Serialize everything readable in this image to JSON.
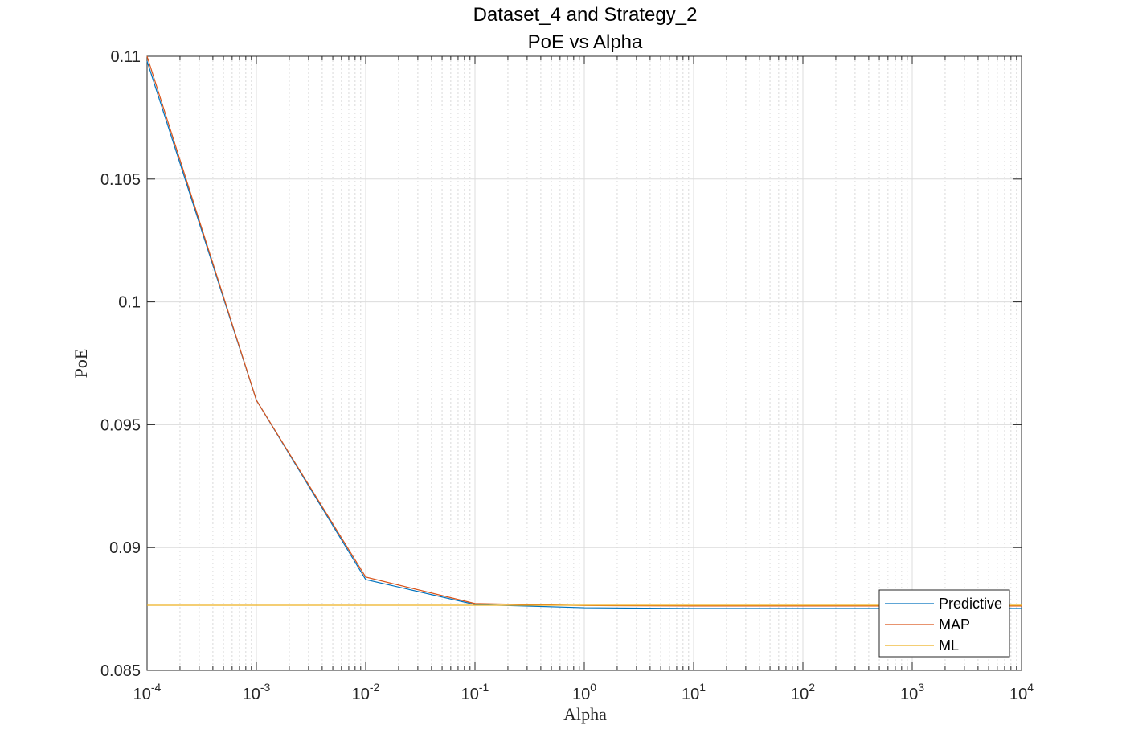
{
  "chart_data": {
    "type": "line",
    "title": "Dataset_4 and Strategy_2",
    "subtitle": "PoE vs Alpha",
    "xlabel": "Alpha",
    "ylabel": "PoE",
    "xscale": "log",
    "xlim": [
      0.0001,
      10000
    ],
    "ylim": [
      0.085,
      0.11
    ],
    "xticks": [
      {
        "exp": -4,
        "base": "10",
        "sup": "-4"
      },
      {
        "exp": -3,
        "base": "10",
        "sup": "-3"
      },
      {
        "exp": -2,
        "base": "10",
        "sup": "-2"
      },
      {
        "exp": -1,
        "base": "10",
        "sup": "-1"
      },
      {
        "exp": 0,
        "base": "10",
        "sup": "0"
      },
      {
        "exp": 1,
        "base": "10",
        "sup": "1"
      },
      {
        "exp": 2,
        "base": "10",
        "sup": "2"
      },
      {
        "exp": 3,
        "base": "10",
        "sup": "3"
      },
      {
        "exp": 4,
        "base": "10",
        "sup": "4"
      }
    ],
    "yticks": [
      {
        "value": 0.085,
        "label": "0.085"
      },
      {
        "value": 0.09,
        "label": "0.09"
      },
      {
        "value": 0.095,
        "label": "0.095"
      },
      {
        "value": 0.1,
        "label": "0.1"
      },
      {
        "value": 0.105,
        "label": "0.105"
      },
      {
        "value": 0.11,
        "label": "0.11"
      }
    ],
    "grid": true,
    "minor_grid": true,
    "legend_position": "bottom-right",
    "x": [
      0.0001,
      0.001,
      0.01,
      0.1,
      1,
      10,
      100,
      1000,
      10000
    ],
    "series": [
      {
        "name": "Predictive",
        "color": "#0072BD",
        "values": [
          0.1098,
          0.096,
          0.0887,
          0.08768,
          0.08755,
          0.08752,
          0.08752,
          0.08752,
          0.08752
        ]
      },
      {
        "name": "MAP",
        "color": "#D95319",
        "values": [
          0.11,
          0.096,
          0.0888,
          0.08772,
          0.08764,
          0.08762,
          0.08762,
          0.08762,
          0.08762
        ]
      },
      {
        "name": "ML",
        "color": "#EDB120",
        "values": [
          0.08765,
          0.08765,
          0.08765,
          0.08765,
          0.08765,
          0.08765,
          0.08765,
          0.08765,
          0.08765
        ]
      }
    ]
  }
}
